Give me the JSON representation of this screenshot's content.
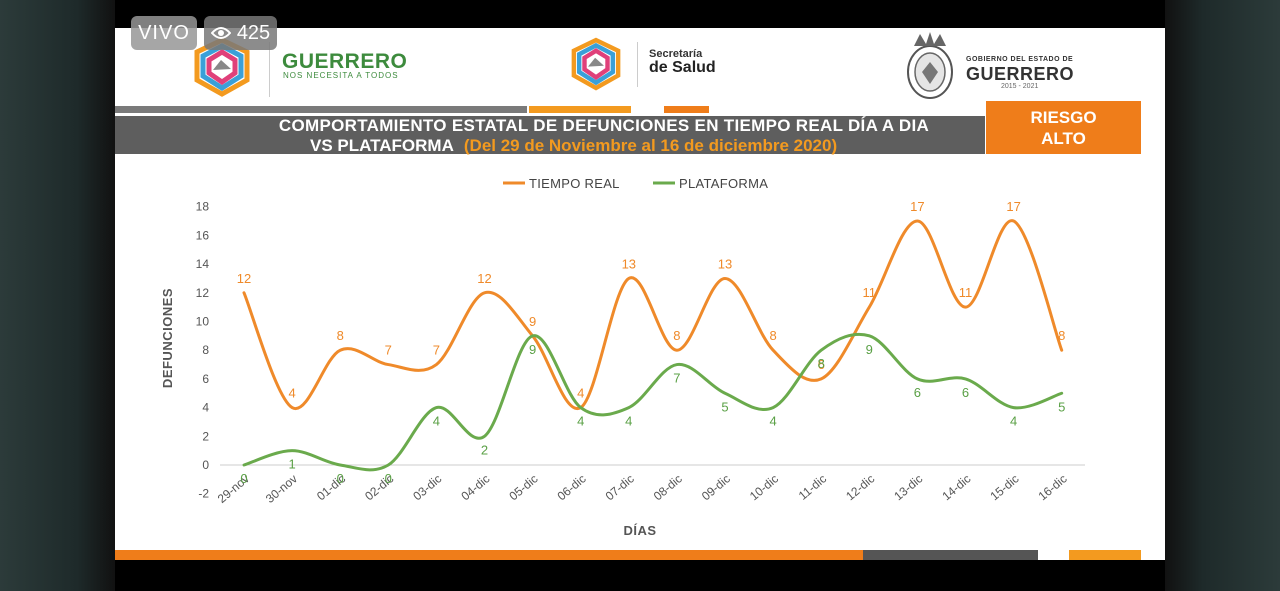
{
  "overlay": {
    "live_label": "VIVO",
    "viewer_count": "425"
  },
  "header": {
    "logo_left_word": "GUERRERO",
    "logo_left_slogan": "NOS NECESITA A TODOS",
    "logo_mid_top": "Secretaría",
    "logo_mid_bottom": "de Salud",
    "logo_right_top": "GOBIERNO DEL ESTADO DE",
    "logo_right_word": "GUERRERO",
    "logo_right_years": "2015 - 2021"
  },
  "title": {
    "line1": "COMPORTAMIENTO ESTATAL DE DEFUNCIONES EN TIEMPO REAL DÍA A DIA",
    "line2": "VS PLATAFORMA",
    "range": "(Del 29 de Noviembre al 16 de diciembre 2020)"
  },
  "risk": {
    "line1": "RIESGO",
    "line2": "ALTO"
  },
  "colors": {
    "tiempo_real": "#ef8a2a",
    "plataforma": "#6aaa4c",
    "accent": "#ef7d1a"
  },
  "chart_data": {
    "type": "line",
    "xlabel": "DÍAS",
    "ylabel": "DEFUNCIONES",
    "ylim": [
      -2,
      18
    ],
    "yticks": [
      -2,
      0,
      2,
      4,
      6,
      8,
      10,
      12,
      14,
      16,
      18
    ],
    "legend_position": "top-center",
    "grid": false,
    "categories": [
      "29-nov",
      "30-nov",
      "01-dic",
      "02-dic",
      "03-dic",
      "04-dic",
      "05-dic",
      "06-dic",
      "07-dic",
      "08-dic",
      "09-dic",
      "10-dic",
      "11-dic",
      "12-dic",
      "13-dic",
      "14-dic",
      "15-dic",
      "16-dic"
    ],
    "series": [
      {
        "name": "TIEMPO REAL",
        "values": [
          12,
          4,
          8,
          7,
          7,
          12,
          9,
          4,
          13,
          8,
          13,
          8,
          6,
          11,
          17,
          11,
          17,
          8
        ]
      },
      {
        "name": "PLATAFORMA",
        "values": [
          0,
          1,
          0,
          0,
          4,
          2,
          9,
          4,
          4,
          7,
          5,
          4,
          8,
          9,
          6,
          6,
          4,
          5
        ]
      }
    ]
  }
}
